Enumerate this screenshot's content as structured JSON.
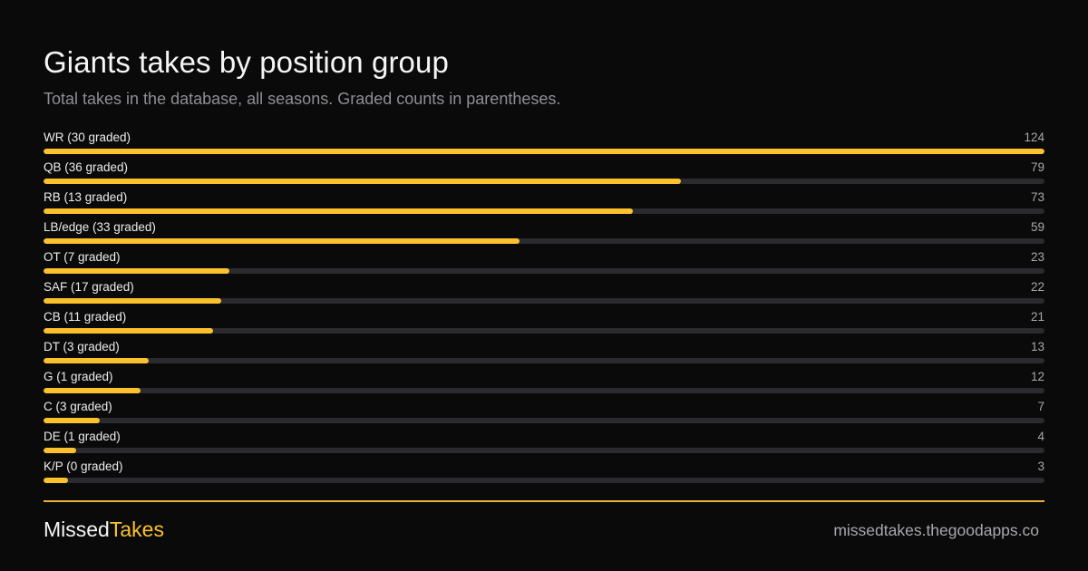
{
  "chart_data": {
    "type": "bar",
    "orientation": "horizontal",
    "title": "Giants takes by position group",
    "subtitle": "Total takes in the database, all seasons. Graded counts in parentheses.",
    "categories": [
      "WR (30 graded)",
      "QB (36 graded)",
      "RB (13 graded)",
      "LB/edge (33 graded)",
      "OT (7 graded)",
      "SAF (17 graded)",
      "CB (11 graded)",
      "DT (3 graded)",
      "G (1 graded)",
      "C (3 graded)",
      "DE (1 graded)",
      "K/P (0 graded)"
    ],
    "values": [
      124,
      79,
      73,
      59,
      23,
      22,
      21,
      13,
      12,
      7,
      4,
      3
    ],
    "xlim": [
      0,
      124
    ],
    "grid": false,
    "legend": "none",
    "bar_color": "#fcc12d",
    "track_color": "#2a2a2f"
  },
  "footer": {
    "brand_part1": "Missed",
    "brand_part2": "Takes",
    "site": "missedtakes.thegoodapps.co",
    "accent_color": "#fcc12d"
  }
}
